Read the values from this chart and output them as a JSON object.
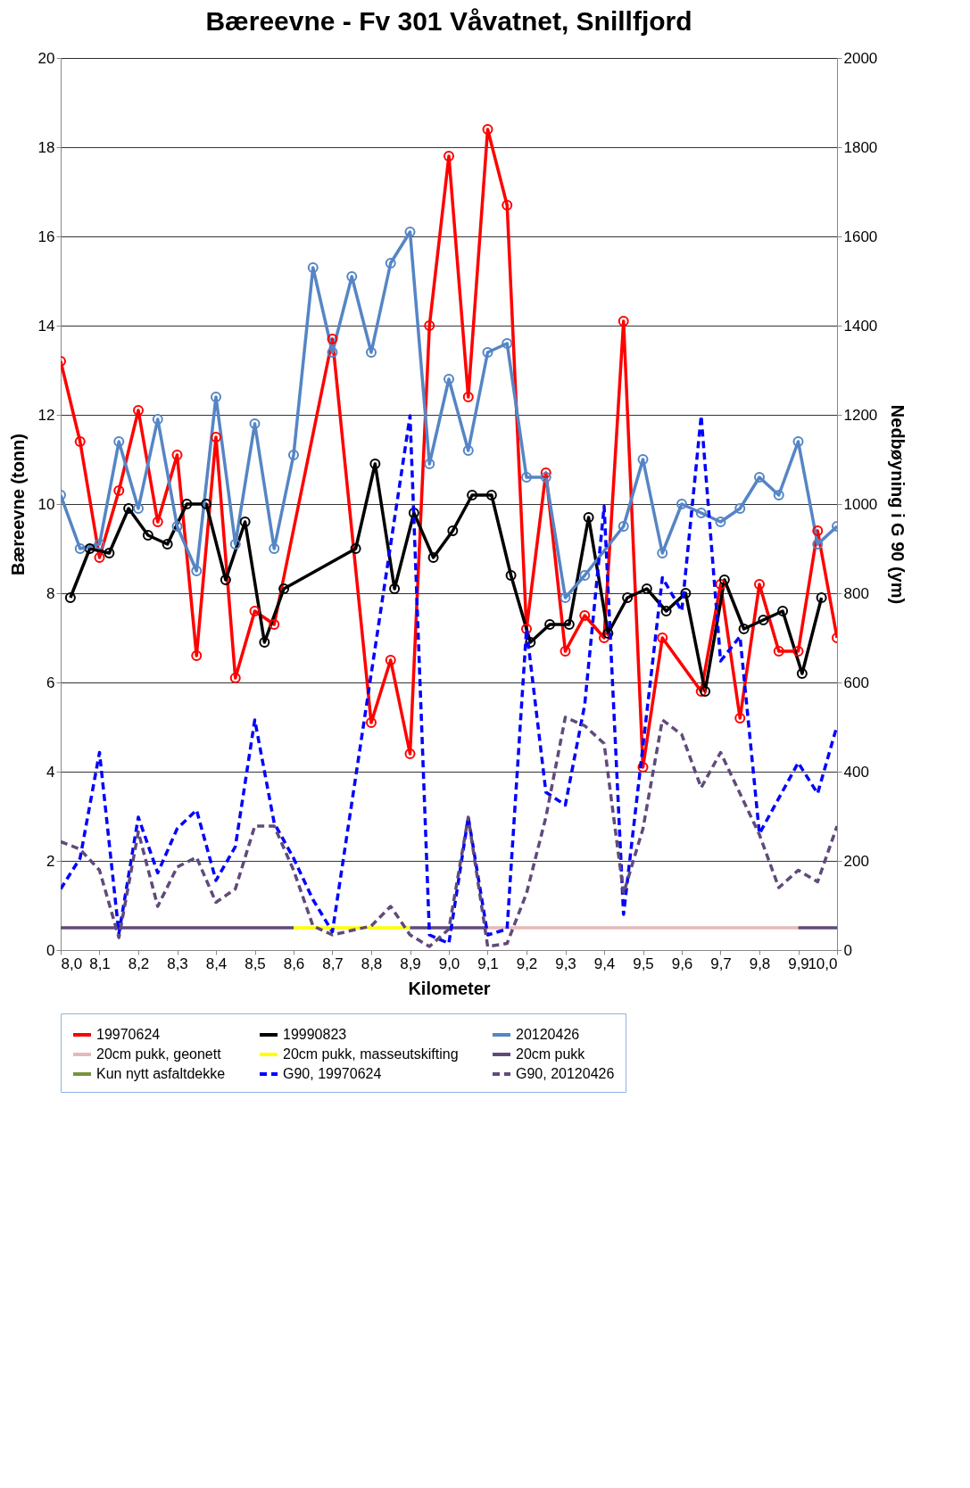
{
  "chart_data": {
    "type": "line",
    "title": "Bæreevne - Fv 301 Våvatnet, Snillfjord",
    "xlabel": "Kilometer",
    "ylabel": "Bæreevne (tonn)",
    "y2label": "Nedbøyning i G 90 (ym)",
    "xlim": [
      8.0,
      10.0
    ],
    "xticks": [
      {
        "value": 8.0,
        "label": "8,0"
      },
      {
        "value": 8.1,
        "label": "8,1"
      },
      {
        "value": 8.2,
        "label": "8,2"
      },
      {
        "value": 8.3,
        "label": "8,3"
      },
      {
        "value": 8.4,
        "label": "8,4"
      },
      {
        "value": 8.5,
        "label": "8,5"
      },
      {
        "value": 8.6,
        "label": "8,6"
      },
      {
        "value": 8.7,
        "label": "8,7"
      },
      {
        "value": 8.8,
        "label": "8,8"
      },
      {
        "value": 8.9,
        "label": "8,9"
      },
      {
        "value": 9.0,
        "label": "9,0"
      },
      {
        "value": 9.1,
        "label": "9,1"
      },
      {
        "value": 9.2,
        "label": "9,2"
      },
      {
        "value": 9.3,
        "label": "9,3"
      },
      {
        "value": 9.4,
        "label": "9,4"
      },
      {
        "value": 9.5,
        "label": "9,5"
      },
      {
        "value": 9.6,
        "label": "9,6"
      },
      {
        "value": 9.7,
        "label": "9,7"
      },
      {
        "value": 9.8,
        "label": "9,8"
      },
      {
        "value": 9.9,
        "label": "9,9"
      },
      {
        "value": 10.0,
        "label": "10,0"
      }
    ],
    "ylim": [
      0,
      20
    ],
    "yticks": [
      0,
      2,
      4,
      6,
      8,
      10,
      12,
      14,
      16,
      18,
      20
    ],
    "y2lim": [
      0,
      2000
    ],
    "y2ticks": [
      0,
      200,
      400,
      600,
      800,
      1000,
      1200,
      1400,
      1600,
      1800,
      2000
    ],
    "grid": "y",
    "legend": "bottom",
    "series": [
      {
        "name": "19970624",
        "color": "#ff0000",
        "marker": "circle",
        "line_style": "solid",
        "x": [
          8.0,
          8.05,
          8.1,
          8.15,
          8.2,
          8.25,
          8.3,
          8.35,
          8.4,
          8.45,
          8.5,
          8.55,
          8.7,
          8.8,
          8.85,
          8.9,
          8.95,
          9.0,
          9.05,
          9.1,
          9.15,
          9.2,
          9.25,
          9.3,
          9.35,
          9.4,
          9.45,
          9.5,
          9.55,
          9.65,
          9.7,
          9.75,
          9.8,
          9.85,
          9.9,
          9.95,
          10.0
        ],
        "values": [
          13.2,
          11.4,
          8.8,
          10.3,
          12.1,
          9.6,
          11.1,
          6.6,
          11.5,
          6.1,
          7.6,
          7.3,
          13.7,
          5.1,
          6.5,
          4.4,
          14.0,
          17.8,
          12.4,
          18.4,
          16.7,
          7.2,
          10.7,
          6.7,
          7.5,
          7.0,
          14.1,
          4.1,
          7.0,
          5.8,
          8.2,
          5.2,
          8.2,
          6.7,
          6.7,
          9.4,
          7.0
        ]
      },
      {
        "name": "19990823",
        "color": "#000000",
        "marker": "circle",
        "line_style": "solid",
        "x": [
          8.025,
          8.075,
          8.125,
          8.175,
          8.225,
          8.275,
          8.325,
          8.375,
          8.425,
          8.475,
          8.525,
          8.575,
          8.76,
          8.81,
          8.86,
          8.91,
          8.96,
          9.01,
          9.06,
          9.11,
          9.16,
          9.21,
          9.26,
          9.31,
          9.36,
          9.41,
          9.46,
          9.51,
          9.56,
          9.61,
          9.66,
          9.71,
          9.76,
          9.81,
          9.86,
          9.91,
          9.96
        ],
        "values": [
          7.9,
          9.0,
          8.9,
          9.9,
          9.3,
          9.1,
          10.0,
          10.0,
          8.3,
          9.6,
          6.9,
          8.1,
          9.0,
          10.9,
          8.1,
          9.8,
          8.8,
          9.4,
          10.2,
          10.2,
          8.4,
          6.9,
          7.3,
          7.3,
          9.7,
          7.1,
          7.9,
          8.1,
          7.6,
          8.0,
          5.8,
          8.3,
          7.2,
          7.4,
          7.6,
          6.2,
          7.9
        ]
      },
      {
        "name": "20120426",
        "color": "#5585c5",
        "marker": "circle",
        "line_style": "solid",
        "x": [
          8.0,
          8.05,
          8.1,
          8.15,
          8.2,
          8.25,
          8.3,
          8.35,
          8.4,
          8.45,
          8.5,
          8.55,
          8.6,
          8.65,
          8.7,
          8.75,
          8.8,
          8.85,
          8.9,
          8.95,
          9.0,
          9.05,
          9.1,
          9.15,
          9.2,
          9.25,
          9.3,
          9.35,
          9.45,
          9.5,
          9.55,
          9.6,
          9.65,
          9.7,
          9.75,
          9.8,
          9.85,
          9.9,
          9.95,
          10.0
        ],
        "values": [
          10.2,
          9.0,
          9.1,
          11.4,
          9.9,
          11.9,
          9.5,
          8.5,
          12.4,
          9.1,
          11.8,
          9.0,
          11.1,
          15.3,
          13.4,
          15.1,
          13.4,
          15.4,
          16.1,
          10.9,
          12.8,
          11.2,
          13.4,
          13.6,
          10.6,
          10.6,
          7.9,
          8.4,
          9.5,
          11.0,
          8.9,
          10.0,
          9.8,
          9.6,
          9.9,
          10.6,
          10.2,
          11.4,
          9.1,
          9.5
        ]
      },
      {
        "name": "20cm pukk, geonett",
        "color": "#e6b9b8",
        "line_style": "solid",
        "x": [
          9.1,
          9.9
        ],
        "values": [
          0.5,
          0.5
        ]
      },
      {
        "name": "20cm pukk, masseutskifting",
        "color": "#ffff00",
        "line_style": "solid",
        "x": [
          8.6,
          8.9
        ],
        "values": [
          0.5,
          0.5
        ]
      },
      {
        "name": "20cm pukk",
        "color": "#604a7b",
        "line_style": "solid",
        "x": [
          8.0,
          8.6,
          8.75,
          8.9,
          9.1,
          9.5,
          9.9,
          10.0
        ],
        "values": [
          0.5,
          0.5,
          null,
          0.5,
          0.5,
          null,
          0.5,
          0.5
        ]
      },
      {
        "name": "Kun nytt asfaltdekke",
        "color": "#77933c",
        "line_style": "solid"
      },
      {
        "name": "G90, 19970624",
        "color": "#0000ff",
        "axis": "y2",
        "line_style": "dashed",
        "x": [
          8.0,
          8.05,
          8.1,
          8.15,
          8.2,
          8.25,
          8.3,
          8.35,
          8.4,
          8.45,
          8.5,
          8.55,
          8.6,
          8.65,
          8.7,
          8.9,
          8.95,
          9.0,
          9.05,
          9.1,
          9.15,
          9.2,
          9.25,
          9.3,
          9.35,
          9.4,
          9.45,
          9.55,
          9.6,
          9.65,
          9.7,
          9.75,
          9.8,
          9.9,
          9.95,
          10.0
        ],
        "values": [
          137,
          206,
          443,
          37,
          298,
          173,
          272,
          314,
          156,
          232,
          516,
          285,
          206,
          113,
          41,
          1198,
          34,
          15,
          298,
          34,
          47,
          720,
          354,
          325,
          550,
          995,
          80,
          835,
          760,
          1198,
          648,
          703,
          261,
          420,
          351,
          503
        ]
      },
      {
        "name": "G90, 20120426",
        "color": "#604a7b",
        "axis": "y2",
        "line_style": "dashed",
        "x": [
          8.0,
          8.05,
          8.1,
          8.15,
          8.2,
          8.25,
          8.3,
          8.35,
          8.4,
          8.45,
          8.5,
          8.55,
          8.6,
          8.65,
          8.7,
          8.8,
          8.85,
          8.9,
          8.95,
          9.0,
          9.05,
          9.1,
          9.15,
          9.2,
          9.25,
          9.3,
          9.35,
          9.4,
          9.45,
          9.5,
          9.55,
          9.6,
          9.65,
          9.7,
          9.8,
          9.85,
          9.9,
          9.95,
          10.0
        ],
        "values": [
          243,
          226,
          179,
          28,
          265,
          98,
          186,
          208,
          107,
          137,
          278,
          278,
          179,
          54,
          34,
          54,
          98,
          34,
          8,
          47,
          298,
          8,
          15,
          127,
          298,
          522,
          503,
          463,
          127,
          272,
          516,
          483,
          364,
          443,
          259,
          140,
          179,
          153,
          278
        ]
      }
    ]
  }
}
